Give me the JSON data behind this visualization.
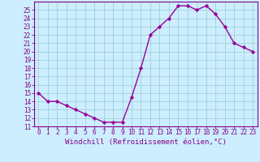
{
  "x": [
    0,
    1,
    2,
    3,
    4,
    5,
    6,
    7,
    8,
    9,
    10,
    11,
    12,
    13,
    14,
    15,
    16,
    17,
    18,
    19,
    20,
    21,
    22,
    23
  ],
  "y": [
    15.0,
    14.0,
    14.0,
    13.5,
    13.0,
    12.5,
    12.0,
    11.5,
    11.5,
    11.5,
    14.5,
    18.0,
    22.0,
    23.0,
    24.0,
    25.5,
    25.5,
    25.0,
    25.5,
    24.5,
    23.0,
    21.0,
    20.5,
    20.0
  ],
  "line_color": "#990099",
  "marker": "D",
  "marker_size": 2.2,
  "bg_color": "#cceeff",
  "grid_color": "#99cccc",
  "xlabel": "Windchill (Refroidissement éolien,°C)",
  "ylim": [
    11,
    26
  ],
  "xlim_min": -0.5,
  "xlim_max": 23.5,
  "tick_color": "#880088",
  "border_color": "#880088",
  "xlabel_fontsize": 6.5,
  "tick_fontsize": 5.5,
  "linewidth": 1.0
}
